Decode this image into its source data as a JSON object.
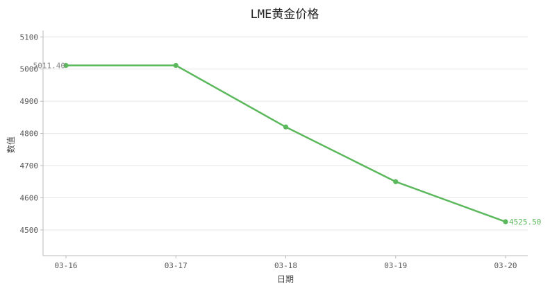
{
  "chart_data": {
    "type": "line",
    "title": "LME黄金价格",
    "xlabel": "日期",
    "ylabel": "数值",
    "categories": [
      "03-16",
      "03-17",
      "03-18",
      "03-19",
      "03-20"
    ],
    "series": [
      {
        "values": [
          5011.4,
          5011.4,
          4820.0,
          4650.0,
          4525.5
        ],
        "color": "#5cb85c"
      }
    ],
    "ylim": [
      4420,
      5120
    ],
    "yticks": [
      4500,
      4600,
      4700,
      4800,
      4900,
      5000,
      5100
    ],
    "grid": true,
    "data_labels": [
      {
        "index": 0,
        "text": "5011.40",
        "color": "#888888"
      },
      {
        "index": 4,
        "text": "4525.50",
        "color": "#5cb85c"
      }
    ]
  }
}
